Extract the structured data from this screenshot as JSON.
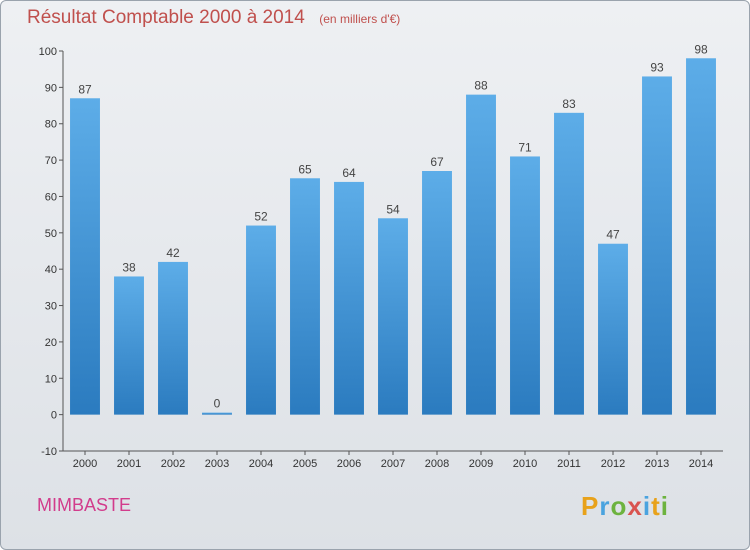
{
  "header": {
    "title": "Résultat Comptable 2000 à 2014",
    "unit": "(en milliers d'€)"
  },
  "footer": {
    "commune": "MIMBASTE",
    "brand": "Proxiti"
  },
  "colors": {
    "title": "#c0504d",
    "commune": "#d23c8c",
    "bar_top": "#5dade8",
    "bar_bottom": "#2b7bbf"
  },
  "chart_data": {
    "type": "bar",
    "title": "Résultat Comptable 2000 à 2014",
    "subtitle": "(en milliers d'€)",
    "categories": [
      "2000",
      "2001",
      "2002",
      "2003",
      "2004",
      "2005",
      "2006",
      "2007",
      "2008",
      "2009",
      "2010",
      "2011",
      "2012",
      "2013",
      "2014"
    ],
    "values": [
      87,
      38,
      42,
      0,
      52,
      65,
      64,
      54,
      67,
      88,
      71,
      83,
      47,
      93,
      98
    ],
    "ylim": [
      -10,
      100
    ],
    "yticks": [
      -10,
      0,
      10,
      20,
      30,
      40,
      50,
      60,
      70,
      80,
      90,
      100
    ],
    "grid": false,
    "legend": "none"
  }
}
